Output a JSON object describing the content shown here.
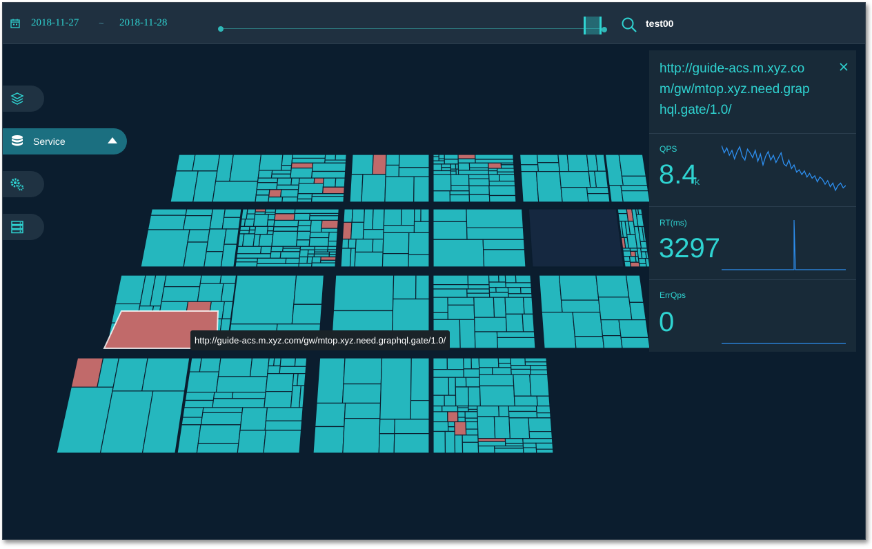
{
  "topbar": {
    "date_start": "2018-11-27",
    "date_separator": "~",
    "date_end": "2018-11-28",
    "user": "test00"
  },
  "nav": {
    "items": [
      {
        "icon": "layers-icon",
        "label": ""
      },
      {
        "icon": "database-icon",
        "label": "Service"
      },
      {
        "icon": "gears-icon",
        "label": ""
      },
      {
        "icon": "server-icon",
        "label": ""
      }
    ]
  },
  "tooltip": {
    "text": "http://guide-acs.m.xyz.com/gw/mtop.xyz.need.graphql.gate/1.0/"
  },
  "detail": {
    "url_line1": "http://guide-acs.m.xyz.co",
    "url_line2": "m/gw/mtop.xyz.need.grap",
    "url_line3": "hql.gate/1.0/",
    "qps": {
      "label": "QPS",
      "value": "8.4",
      "unit": "K",
      "series": [
        82,
        70,
        78,
        66,
        74,
        60,
        72,
        80,
        64,
        58,
        76,
        70,
        62,
        74,
        56,
        68,
        50,
        64,
        72,
        58,
        66,
        54,
        62,
        70,
        52,
        48,
        58,
        44,
        50,
        38,
        42,
        34,
        40,
        30,
        36,
        28,
        32,
        22,
        30,
        26,
        18,
        24,
        14,
        20,
        8,
        16,
        20,
        12,
        16
      ]
    },
    "rt": {
      "label": "RT(ms)",
      "value": "3297",
      "series": [
        0,
        0,
        0,
        0,
        0,
        0,
        0,
        0,
        0,
        0,
        0,
        0,
        0,
        0,
        0,
        0,
        0,
        0,
        0,
        0,
        0,
        0,
        0,
        0,
        0,
        0,
        0,
        0,
        -6,
        0,
        0,
        0,
        0,
        0,
        0,
        0,
        0,
        0,
        0,
        0,
        0,
        0,
        0,
        0,
        0,
        0,
        0,
        0,
        0
      ]
    },
    "errqps": {
      "label": "ErrQps",
      "value": "0"
    }
  },
  "colors": {
    "background": "#0b1d2e",
    "tile": "#25b7be",
    "tile_alert": "#c16a6a",
    "tile_empty": "#152840",
    "accent": "#2fd3d1",
    "spark": "#2d8ff0"
  }
}
